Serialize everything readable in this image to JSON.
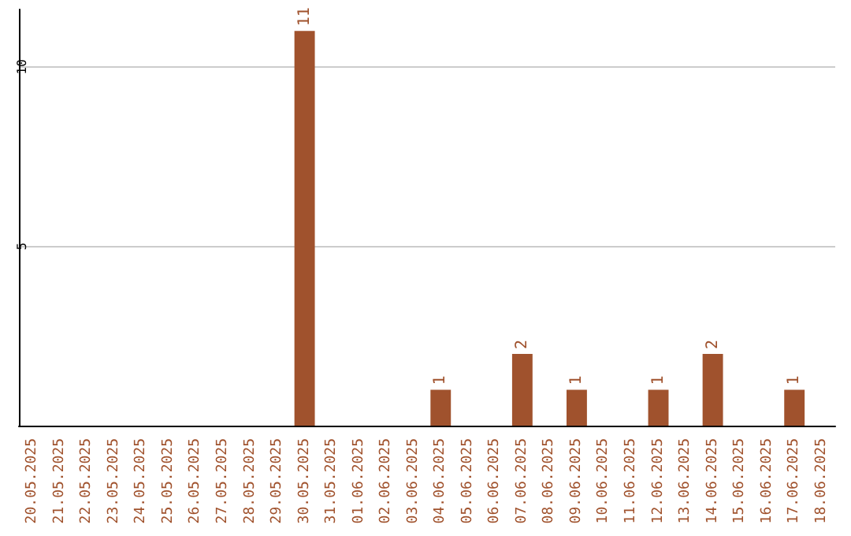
{
  "chart_data": {
    "type": "bar",
    "categories": [
      "20.05.2025",
      "21.05.2025",
      "22.05.2025",
      "23.05.2025",
      "24.05.2025",
      "25.05.2025",
      "26.05.2025",
      "27.05.2025",
      "28.05.2025",
      "29.05.2025",
      "30.05.2025",
      "31.05.2025",
      "01.06.2025",
      "02.06.2025",
      "03.06.2025",
      "04.06.2025",
      "05.06.2025",
      "06.06.2025",
      "07.06.2025",
      "08.06.2025",
      "09.06.2025",
      "10.06.2025",
      "11.06.2025",
      "12.06.2025",
      "13.06.2025",
      "14.06.2025",
      "15.06.2025",
      "16.06.2025",
      "17.06.2025",
      "18.06.2025"
    ],
    "values": [
      0,
      0,
      0,
      0,
      0,
      0,
      0,
      0,
      0,
      0,
      11,
      0,
      0,
      0,
      0,
      1,
      0,
      0,
      2,
      0,
      1,
      0,
      0,
      1,
      0,
      2,
      0,
      0,
      1,
      0
    ],
    "value_labels": [
      null,
      null,
      null,
      null,
      null,
      null,
      null,
      null,
      null,
      null,
      "11",
      null,
      null,
      null,
      null,
      "1",
      null,
      null,
      "2",
      null,
      "1",
      null,
      null,
      "1",
      null,
      "2",
      null,
      null,
      "1",
      null
    ],
    "color": "#a0522d",
    "ylim": [
      0,
      11.6
    ],
    "yticks": [
      5,
      10
    ],
    "grid": "y"
  }
}
